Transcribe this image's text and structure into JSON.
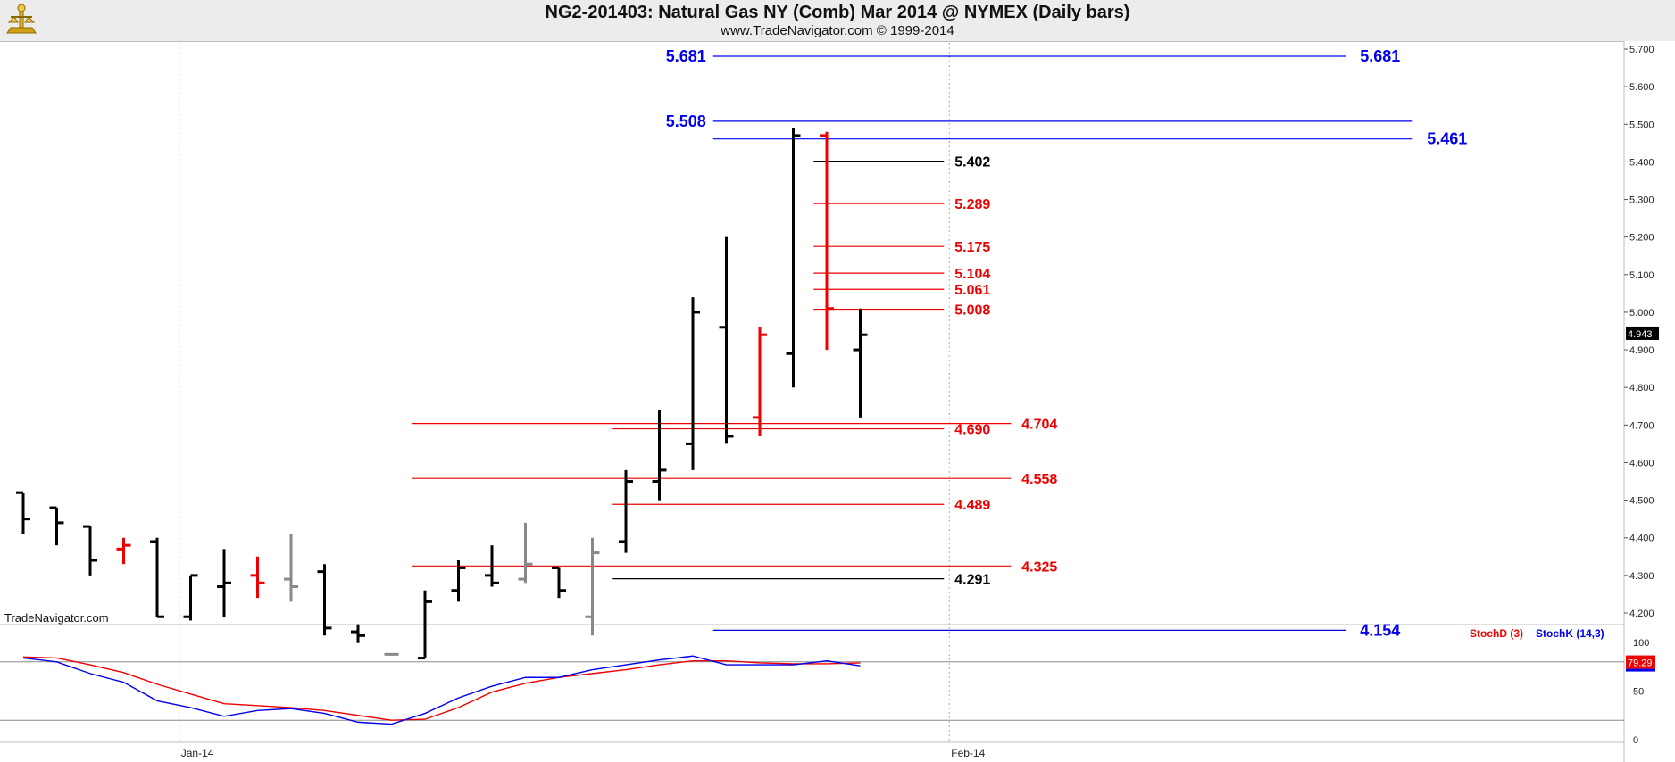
{
  "header": {
    "title": "NG2-201403:  Natural Gas NY (Comb) Mar 2014 @ NYMEX  (Daily bars)",
    "subtitle": "www.TradeNavigator.com © 1999-2014"
  },
  "watermark": "TradeNavigator.com",
  "colors": {
    "blue": "#0000ee",
    "red": "#ee0000",
    "black": "#000000",
    "gray": "#888888",
    "green": "#00dd00"
  },
  "chart_data": [
    {
      "type": "ohlc",
      "price_axis": {
        "ticks": [
          "5.700",
          "5.600",
          "5.500",
          "5.400",
          "5.300",
          "5.200",
          "5.100",
          "5.000",
          "4.900",
          "4.800",
          "4.700",
          "4.600",
          "4.500",
          "4.400",
          "4.300",
          "4.200"
        ],
        "range": [
          4.08,
          5.73
        ],
        "last_price": "4.943"
      },
      "time_axis": {
        "labels": [
          {
            "label": "Jan-14",
            "bar": 5
          },
          {
            "label": "Feb-14",
            "bar": 28
          }
        ]
      },
      "bars": [
        {
          "o": 4.52,
          "h": 4.52,
          "l": 4.41,
          "c": 4.45,
          "color": "black"
        },
        {
          "o": 4.48,
          "h": 4.48,
          "l": 4.38,
          "c": 4.44,
          "color": "black"
        },
        {
          "o": 4.43,
          "h": 4.43,
          "l": 4.3,
          "c": 4.34,
          "color": "black"
        },
        {
          "o": 4.37,
          "h": 4.4,
          "l": 4.33,
          "c": 4.38,
          "color": "red"
        },
        {
          "o": 4.39,
          "h": 4.4,
          "l": 4.19,
          "c": 4.19,
          "color": "black"
        },
        {
          "o": 4.19,
          "h": 4.3,
          "l": 4.18,
          "c": 4.3,
          "color": "black"
        },
        {
          "o": 4.27,
          "h": 4.37,
          "l": 4.19,
          "c": 4.28,
          "color": "black"
        },
        {
          "o": 4.3,
          "h": 4.35,
          "l": 4.24,
          "c": 4.28,
          "color": "red"
        },
        {
          "o": 4.29,
          "h": 4.41,
          "l": 4.23,
          "c": 4.27,
          "color": "gray"
        },
        {
          "o": 4.31,
          "h": 4.33,
          "l": 4.14,
          "c": 4.16,
          "color": "black"
        },
        {
          "o": 4.15,
          "h": 4.17,
          "l": 4.12,
          "c": 4.14,
          "color": "black"
        },
        {
          "o": 4.09,
          "h": 4.09,
          "l": 4.09,
          "c": 4.09,
          "color": "gray"
        },
        {
          "o": 4.08,
          "h": 4.26,
          "l": 4.08,
          "c": 4.23,
          "color": "black"
        },
        {
          "o": 4.26,
          "h": 4.34,
          "l": 4.23,
          "c": 4.32,
          "color": "black"
        },
        {
          "o": 4.3,
          "h": 4.38,
          "l": 4.27,
          "c": 4.28,
          "color": "black"
        },
        {
          "o": 4.29,
          "h": 4.44,
          "l": 4.28,
          "c": 4.33,
          "color": "gray"
        },
        {
          "o": 4.32,
          "h": 4.32,
          "l": 4.24,
          "c": 4.26,
          "color": "black"
        },
        {
          "o": 4.19,
          "h": 4.4,
          "l": 4.14,
          "c": 4.36,
          "color": "gray"
        },
        {
          "o": 4.39,
          "h": 4.58,
          "l": 4.36,
          "c": 4.55,
          "color": "black"
        },
        {
          "o": 4.55,
          "h": 4.74,
          "l": 4.5,
          "c": 4.58,
          "color": "black"
        },
        {
          "o": 4.65,
          "h": 5.04,
          "l": 4.58,
          "c": 5.0,
          "color": "black"
        },
        {
          "o": 4.96,
          "h": 5.2,
          "l": 4.65,
          "c": 4.67,
          "color": "black"
        },
        {
          "o": 4.72,
          "h": 4.96,
          "l": 4.67,
          "c": 4.94,
          "color": "red"
        },
        {
          "o": 4.89,
          "h": 5.49,
          "l": 4.8,
          "c": 5.47,
          "color": "black"
        },
        {
          "o": 5.47,
          "h": 5.48,
          "l": 4.9,
          "c": 5.01,
          "color": "red"
        },
        {
          "o": 4.9,
          "h": 5.01,
          "l": 4.72,
          "c": 4.94,
          "color": "black"
        }
      ],
      "levels": [
        {
          "value": 5.681,
          "label": "5.681",
          "color": "blue",
          "from_bar": 21,
          "to_bar": 39,
          "label_left": "5.681",
          "label_right": "5.681"
        },
        {
          "value": 5.508,
          "label": "5.508",
          "color": "blue",
          "from_bar": 21,
          "to_bar": 41,
          "label_left": "5.508",
          "label_right": ""
        },
        {
          "value": 5.461,
          "label": "5.461",
          "color": "blue",
          "from_bar": 21,
          "to_bar": 41,
          "label_left": "",
          "label_right": "5.461"
        },
        {
          "value": 5.402,
          "label": "5.402",
          "color": "black",
          "from_bar": 24,
          "to_bar": 27,
          "label_left": "",
          "label_right": "5.402"
        },
        {
          "value": 5.289,
          "label": "5.289",
          "color": "red",
          "from_bar": 24,
          "to_bar": 27,
          "label_left": "",
          "label_right": "5.289"
        },
        {
          "value": 5.175,
          "label": "5.175",
          "color": "red",
          "from_bar": 24,
          "to_bar": 27,
          "label_left": "",
          "label_right": "5.175"
        },
        {
          "value": 5.104,
          "label": "5.104",
          "color": "red",
          "from_bar": 24,
          "to_bar": 27,
          "label_left": "",
          "label_right": "5.104"
        },
        {
          "value": 5.061,
          "label": "5.061",
          "color": "red",
          "from_bar": 24,
          "to_bar": 27,
          "label_left": "",
          "label_right": "5.061"
        },
        {
          "value": 5.008,
          "label": "5.008",
          "color": "red",
          "from_bar": 24,
          "to_bar": 27,
          "label_left": "",
          "label_right": "5.008"
        },
        {
          "value": 4.704,
          "label": "4.704",
          "color": "red",
          "from_bar": 12,
          "to_bar": 29,
          "label_left": "",
          "label_right": "4.704"
        },
        {
          "value": 4.69,
          "label": "4.690",
          "color": "red",
          "from_bar": 18,
          "to_bar": 27,
          "label_left": "",
          "label_right": "4.690"
        },
        {
          "value": 4.558,
          "label": "4.558",
          "color": "red",
          "from_bar": 12,
          "to_bar": 29,
          "label_left": "",
          "label_right": "4.558"
        },
        {
          "value": 4.489,
          "label": "4.489",
          "color": "red",
          "from_bar": 18,
          "to_bar": 27,
          "label_left": "",
          "label_right": "4.489"
        },
        {
          "value": 4.325,
          "label": "4.325",
          "color": "red",
          "from_bar": 12,
          "to_bar": 29,
          "label_left": "",
          "label_right": "4.325"
        },
        {
          "value": 4.291,
          "label": "4.291",
          "color": "black",
          "from_bar": 18,
          "to_bar": 27,
          "label_left": "",
          "label_right": "4.291"
        },
        {
          "value": 4.154,
          "label": "4.154",
          "color": "blue",
          "from_bar": 21,
          "to_bar": 39,
          "label_left": "",
          "label_right": "4.154"
        }
      ]
    },
    {
      "type": "line",
      "indicator": "Stochastic",
      "series": [
        {
          "name": "StochD (3)",
          "color": "red",
          "values": [
            85,
            84,
            77,
            69,
            57,
            47,
            37,
            35,
            33,
            30,
            25,
            20,
            21,
            33,
            49,
            58,
            64,
            68,
            72,
            77,
            81,
            81,
            79,
            78,
            78,
            79
          ]
        },
        {
          "name": "StochK (14,3)",
          "color": "blue",
          "values": [
            84,
            80,
            68,
            59,
            40,
            33,
            24,
            30,
            32,
            27,
            18,
            16,
            27,
            43,
            55,
            64,
            64,
            72,
            77,
            82,
            86,
            77,
            77,
            77,
            81,
            76
          ]
        }
      ],
      "axis_ticks": [
        "100",
        "50",
        "0"
      ],
      "ref_lines": [
        80,
        20
      ],
      "last_value": "79.29"
    }
  ]
}
